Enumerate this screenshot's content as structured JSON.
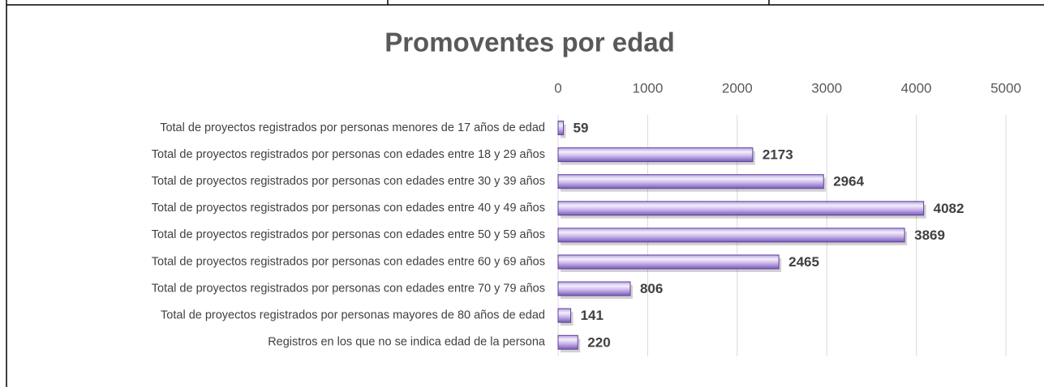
{
  "chart_data": {
    "type": "bar",
    "orientation": "horizontal",
    "title": "Promoventes por edad",
    "categories": [
      "Total de proyectos registrados por personas menores de 17 años de edad",
      "Total de proyectos registrados por personas con edades entre 18 y 29 años",
      "Total de proyectos registrados por personas con edades entre 30 y 39 años",
      "Total de proyectos registrados por personas con edades entre 40 y 49 años",
      "Total de proyectos registrados por personas con edades entre 50 y 59 años",
      "Total de proyectos registrados por personas con edades entre 60 y 69 años",
      "Total de proyectos registrados por personas con edades entre 70 y 79 años",
      "Total de proyectos registrados por personas mayores de 80 años de edad",
      "Registros en los que no se indica edad de la persona"
    ],
    "values": [
      59,
      2173,
      2964,
      4082,
      3869,
      2465,
      806,
      141,
      220
    ],
    "color": "#9575cd",
    "xlim": [
      0,
      5000
    ],
    "xticks": [
      0,
      1000,
      2000,
      3000,
      4000,
      5000
    ],
    "grid": true
  }
}
